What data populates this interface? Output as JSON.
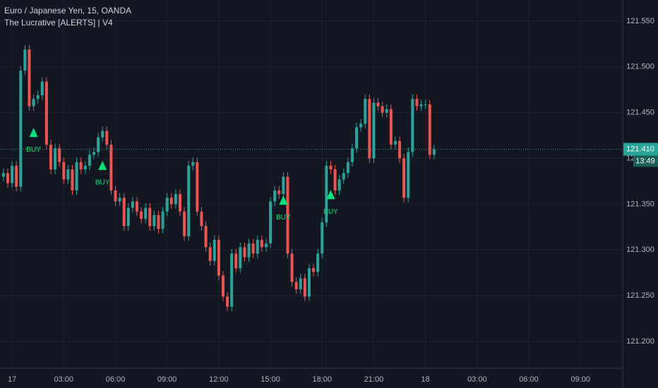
{
  "chart_data": {
    "type": "candlestick",
    "title": "Euro / Japanese Yen, 15, OANDA",
    "subtitle": "The Lucrative [ALERTS] | V4",
    "up_color": "#26a69a",
    "down_color": "#ef5350",
    "grid": true,
    "x": [
      -2,
      -1,
      0,
      1,
      2,
      3,
      4,
      5,
      6,
      7,
      8,
      9,
      10,
      11,
      12,
      13,
      14,
      15,
      16,
      17,
      18,
      19,
      20,
      21,
      22,
      23,
      24,
      25,
      26,
      27,
      28,
      29,
      30,
      31,
      32,
      33,
      34,
      35,
      36,
      37,
      38,
      39,
      40,
      41,
      42,
      43,
      44,
      45,
      46,
      47,
      48,
      49,
      50,
      51,
      52,
      53,
      54,
      55,
      56,
      57,
      58,
      59,
      60,
      61,
      62,
      63,
      64,
      65,
      66,
      67,
      68,
      69,
      70,
      71,
      72,
      73,
      74,
      75,
      76,
      77,
      78,
      79,
      80,
      81,
      82,
      83,
      84,
      85,
      86,
      87,
      88,
      89,
      90,
      91,
      92,
      93,
      94,
      95,
      96,
      97,
      98
    ],
    "open": [
      121.38,
      121.384,
      121.373,
      121.392,
      121.369,
      121.496,
      121.519,
      121.457,
      121.465,
      121.469,
      121.484,
      121.415,
      121.388,
      121.411,
      121.396,
      121.377,
      121.388,
      121.365,
      121.396,
      121.388,
      121.392,
      121.404,
      121.407,
      121.423,
      121.43,
      121.415,
      121.365,
      121.353,
      121.357,
      121.326,
      121.346,
      121.353,
      121.342,
      121.334,
      121.346,
      121.326,
      121.338,
      121.323,
      121.342,
      121.357,
      121.35,
      121.361,
      121.342,
      121.315,
      121.392,
      121.396,
      121.342,
      121.326,
      121.303,
      121.288,
      121.311,
      121.272,
      121.249,
      121.238,
      121.296,
      121.28,
      121.303,
      121.292,
      121.307,
      121.296,
      121.311,
      121.303,
      121.307,
      121.353,
      121.365,
      121.361,
      121.38,
      121.296,
      121.265,
      121.257,
      121.269,
      121.249,
      121.28,
      121.276,
      121.296,
      121.33,
      121.392,
      121.388,
      121.365,
      121.377,
      121.384,
      121.396,
      121.411,
      121.434,
      121.438,
      121.465,
      121.4,
      121.461,
      121.457,
      121.45,
      121.454,
      121.415,
      121.419,
      121.4,
      121.357,
      121.407,
      121.465,
      121.457,
      121.459,
      121.459,
      121.404
    ],
    "high": [
      121.389,
      121.389,
      121.397,
      121.397,
      121.501,
      121.524,
      121.524,
      121.47,
      121.474,
      121.489,
      121.489,
      121.42,
      121.416,
      121.416,
      121.401,
      121.393,
      121.393,
      121.401,
      121.401,
      121.397,
      121.409,
      121.412,
      121.428,
      121.435,
      121.435,
      121.42,
      121.37,
      121.362,
      121.362,
      121.351,
      121.358,
      121.358,
      121.347,
      121.351,
      121.351,
      121.343,
      121.343,
      121.347,
      121.362,
      121.362,
      121.366,
      121.366,
      121.347,
      121.397,
      121.401,
      121.401,
      121.347,
      121.331,
      121.308,
      121.316,
      121.316,
      121.277,
      121.254,
      121.301,
      121.301,
      121.308,
      121.308,
      121.312,
      121.312,
      121.316,
      121.316,
      121.312,
      121.358,
      121.37,
      121.37,
      121.385,
      121.385,
      121.301,
      121.27,
      121.274,
      121.274,
      121.285,
      121.285,
      121.301,
      121.335,
      121.397,
      121.397,
      121.393,
      121.382,
      121.389,
      121.401,
      121.416,
      121.439,
      121.443,
      121.47,
      121.47,
      121.466,
      121.466,
      121.462,
      121.459,
      121.459,
      121.424,
      121.424,
      121.405,
      121.412,
      121.47,
      121.47,
      121.464,
      121.464,
      121.464,
      121.415
    ],
    "low": [
      121.375,
      121.368,
      121.368,
      121.364,
      121.364,
      121.491,
      121.452,
      121.452,
      121.46,
      121.464,
      121.41,
      121.383,
      121.383,
      121.391,
      121.372,
      121.372,
      121.36,
      121.36,
      121.383,
      121.383,
      121.387,
      121.399,
      121.402,
      121.418,
      121.41,
      121.36,
      121.348,
      121.348,
      121.321,
      121.321,
      121.341,
      121.337,
      121.329,
      121.329,
      121.321,
      121.321,
      121.318,
      121.318,
      121.337,
      121.345,
      121.345,
      121.337,
      121.31,
      121.31,
      121.387,
      121.337,
      121.321,
      121.298,
      121.283,
      121.283,
      121.267,
      121.244,
      121.233,
      121.233,
      121.275,
      121.275,
      121.287,
      121.287,
      121.291,
      121.291,
      121.298,
      121.298,
      121.302,
      121.348,
      121.356,
      121.356,
      121.291,
      121.26,
      121.252,
      121.252,
      121.244,
      121.244,
      121.271,
      121.271,
      121.291,
      121.325,
      121.383,
      121.36,
      121.36,
      121.372,
      121.379,
      121.391,
      121.406,
      121.429,
      121.433,
      121.395,
      121.395,
      121.452,
      121.445,
      121.445,
      121.41,
      121.41,
      121.395,
      121.352,
      121.352,
      121.402,
      121.452,
      121.452,
      121.454,
      121.399,
      121.399
    ],
    "close": [
      121.384,
      121.373,
      121.392,
      121.369,
      121.496,
      121.519,
      121.457,
      121.465,
      121.469,
      121.484,
      121.415,
      121.388,
      121.411,
      121.396,
      121.377,
      121.388,
      121.365,
      121.396,
      121.388,
      121.392,
      121.404,
      121.407,
      121.423,
      121.43,
      121.415,
      121.365,
      121.353,
      121.357,
      121.326,
      121.346,
      121.353,
      121.342,
      121.334,
      121.346,
      121.326,
      121.338,
      121.323,
      121.342,
      121.357,
      121.35,
      121.361,
      121.342,
      121.315,
      121.392,
      121.396,
      121.342,
      121.326,
      121.303,
      121.288,
      121.311,
      121.272,
      121.249,
      121.238,
      121.296,
      121.28,
      121.303,
      121.292,
      121.307,
      121.296,
      121.311,
      121.303,
      121.307,
      121.353,
      121.365,
      121.361,
      121.38,
      121.296,
      121.265,
      121.257,
      121.269,
      121.249,
      121.28,
      121.276,
      121.296,
      121.33,
      121.392,
      121.388,
      121.365,
      121.377,
      121.384,
      121.396,
      121.411,
      121.434,
      121.438,
      121.465,
      121.4,
      121.461,
      121.457,
      121.45,
      121.454,
      121.415,
      121.419,
      121.4,
      121.357,
      121.407,
      121.465,
      121.457,
      121.459,
      121.459,
      121.404,
      121.41
    ],
    "signals": [
      {
        "x": 5,
        "price": 121.428,
        "label": "BUY"
      },
      {
        "x": 21,
        "price": 121.392,
        "label": "BUY"
      },
      {
        "x": 63,
        "price": 121.354,
        "label": "BUY"
      },
      {
        "x": 74,
        "price": 121.36,
        "label": "BUY"
      }
    ],
    "last_price": {
      "value": 121.41,
      "label": "121.410"
    },
    "countdown": "13:49",
    "xlim": [
      -2.8,
      141.8
    ],
    "ylim": [
      121.1707,
      121.5731
    ],
    "xticks": [
      {
        "value": 0,
        "label": "17"
      },
      {
        "value": 12,
        "label": "03:00"
      },
      {
        "value": 24,
        "label": "06:00"
      },
      {
        "value": 36,
        "label": "09:00"
      },
      {
        "value": 48,
        "label": "12:00"
      },
      {
        "value": 60,
        "label": "15:00"
      },
      {
        "value": 72,
        "label": "18:00"
      },
      {
        "value": 84,
        "label": "21:00"
      },
      {
        "value": 96,
        "label": "18"
      },
      {
        "value": 108,
        "label": "03:00"
      },
      {
        "value": 120,
        "label": "06:00"
      },
      {
        "value": 132,
        "label": "09:00"
      }
    ],
    "yticks": [
      {
        "value": 121.55,
        "label": "121.550"
      },
      {
        "value": 121.5,
        "label": "121.500"
      },
      {
        "value": 121.45,
        "label": "121.450"
      },
      {
        "value": 121.4,
        "label": "121.400"
      },
      {
        "value": 121.35,
        "label": "121.350"
      },
      {
        "value": 121.3,
        "label": "121.300"
      },
      {
        "value": 121.25,
        "label": "121.250"
      },
      {
        "value": 121.2,
        "label": "121.200"
      }
    ]
  }
}
